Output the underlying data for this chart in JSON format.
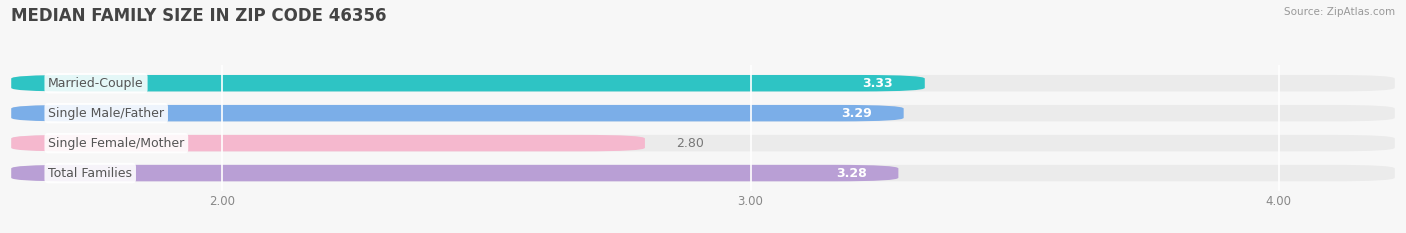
{
  "title": "MEDIAN FAMILY SIZE IN ZIP CODE 46356",
  "source": "Source: ZipAtlas.com",
  "categories": [
    "Married-Couple",
    "Single Male/Father",
    "Single Female/Mother",
    "Total Families"
  ],
  "values": [
    3.33,
    3.29,
    2.8,
    3.28
  ],
  "bar_colors": [
    "#2EC4C4",
    "#7BAEE8",
    "#F5B8CE",
    "#B99FD5"
  ],
  "xlim_min": 1.6,
  "xlim_max": 4.22,
  "xstart": 1.6,
  "xticks": [
    2.0,
    3.0,
    4.0
  ],
  "xtick_labels": [
    "2.00",
    "3.00",
    "4.00"
  ],
  "label_fontsize": 9,
  "value_fontsize": 9,
  "title_fontsize": 12,
  "background_color": "#f7f7f7",
  "bar_bg_color": "#ebebeb",
  "bar_height": 0.55,
  "label_color": "#555555",
  "value_color_inside": "#ffffff",
  "value_color_outside": "#777777",
  "title_color": "#444444",
  "source_color": "#999999",
  "grid_color": "#ffffff",
  "outside_threshold": 2.85
}
